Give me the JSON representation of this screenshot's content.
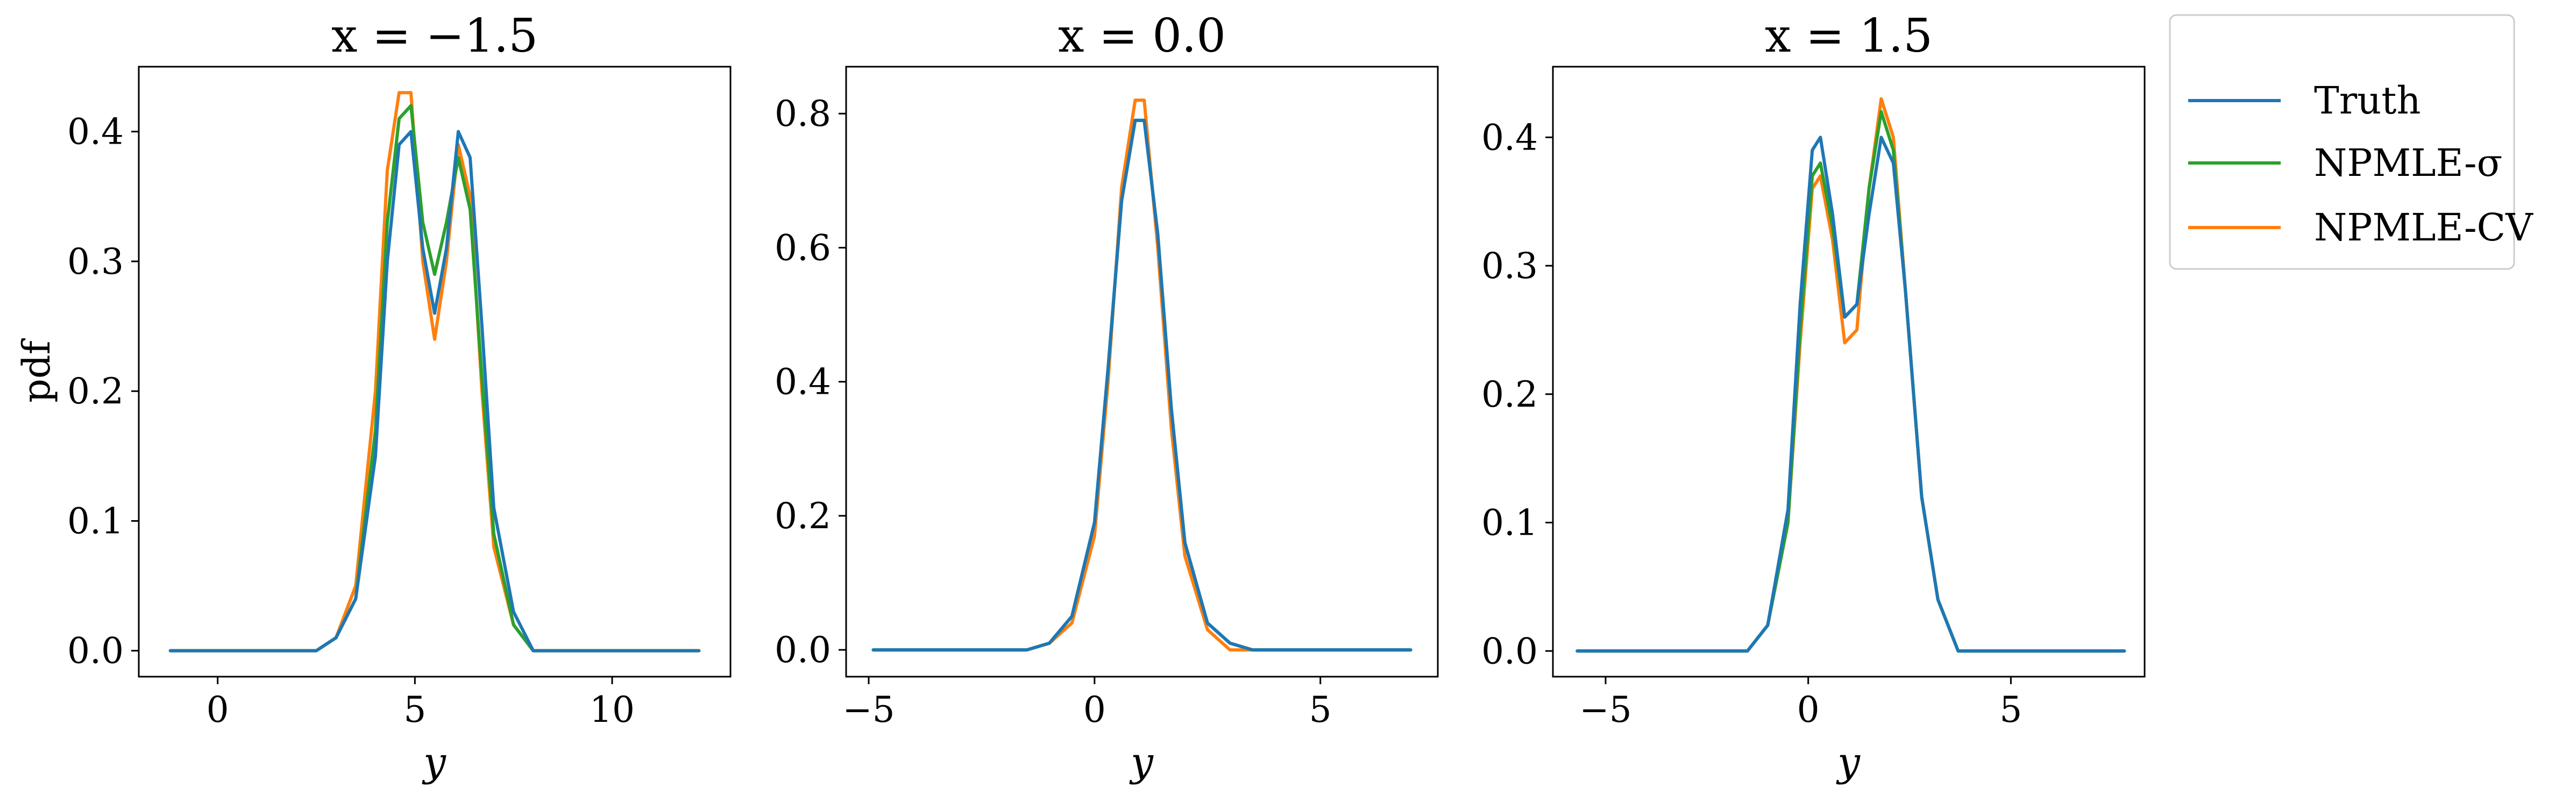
{
  "figure": {
    "colors": {
      "truth": "#1f77b4",
      "npmle_sigma": "#2ca02c",
      "npmle_cv": "#ff7f0e"
    }
  },
  "legend": {
    "placement": "outside-right-top",
    "entries": [
      {
        "label": "Truth",
        "color": "#1f77b4"
      },
      {
        "label": "NPMLE-σ",
        "color": "#2ca02c"
      },
      {
        "label": "NPMLE-CV",
        "color": "#ff7f0e"
      }
    ]
  },
  "chart_data": [
    {
      "type": "line",
      "title": "x = −1.5",
      "xlabel": "y",
      "ylabel": "pdf",
      "xlim": [
        -2.0,
        13.0
      ],
      "ylim": [
        -0.02,
        0.45
      ],
      "xticks": [
        0,
        5,
        10
      ],
      "yticks": [
        0.0,
        0.1,
        0.2,
        0.3,
        0.4
      ],
      "xtick_labels": [
        "0",
        "5",
        "10"
      ],
      "ytick_labels": [
        "0.0",
        "0.1",
        "0.2",
        "0.3",
        "0.4"
      ],
      "series": [
        {
          "name": "NPMLE-CV",
          "color": "#ff7f0e",
          "x": [
            -1.2,
            2.5,
            3.0,
            3.5,
            4.0,
            4.3,
            4.6,
            4.9,
            5.2,
            5.5,
            5.8,
            6.1,
            6.4,
            6.7,
            7.0,
            7.5,
            8.0,
            12.2
          ],
          "y": [
            0.0,
            0.0,
            0.01,
            0.05,
            0.2,
            0.37,
            0.43,
            0.43,
            0.3,
            0.24,
            0.3,
            0.39,
            0.35,
            0.2,
            0.08,
            0.02,
            0.0,
            0.0
          ]
        },
        {
          "name": "NPMLE-σ",
          "color": "#2ca02c",
          "x": [
            -1.2,
            2.5,
            3.0,
            3.5,
            4.0,
            4.3,
            4.6,
            4.9,
            5.2,
            5.5,
            5.8,
            6.1,
            6.4,
            6.7,
            7.0,
            7.5,
            8.0,
            12.2
          ],
          "y": [
            0.0,
            0.0,
            0.01,
            0.04,
            0.17,
            0.33,
            0.41,
            0.42,
            0.33,
            0.29,
            0.33,
            0.38,
            0.34,
            0.21,
            0.09,
            0.02,
            0.0,
            0.0
          ]
        },
        {
          "name": "Truth",
          "color": "#1f77b4",
          "x": [
            -1.2,
            2.5,
            3.0,
            3.5,
            4.0,
            4.3,
            4.6,
            4.9,
            5.2,
            5.5,
            5.8,
            6.1,
            6.4,
            6.7,
            7.0,
            7.5,
            8.0,
            12.2
          ],
          "y": [
            0.0,
            0.0,
            0.01,
            0.04,
            0.15,
            0.3,
            0.39,
            0.4,
            0.31,
            0.26,
            0.31,
            0.4,
            0.38,
            0.25,
            0.11,
            0.03,
            0.0,
            0.0
          ]
        }
      ]
    },
    {
      "type": "line",
      "title": "x = 0.0",
      "xlabel": "y",
      "ylabel": "",
      "xlim": [
        -5.5,
        7.6
      ],
      "ylim": [
        -0.04,
        0.87
      ],
      "xticks": [
        -5,
        0,
        5
      ],
      "yticks": [
        0.0,
        0.2,
        0.4,
        0.6,
        0.8
      ],
      "xtick_labels": [
        "−5",
        "0",
        "5"
      ],
      "ytick_labels": [
        "0.0",
        "0.2",
        "0.4",
        "0.6",
        "0.8"
      ],
      "series": [
        {
          "name": "NPMLE-CV",
          "color": "#ff7f0e",
          "x": [
            -4.9,
            -1.5,
            -1.0,
            -0.5,
            0.0,
            0.3,
            0.6,
            0.9,
            1.1,
            1.4,
            1.7,
            2.0,
            2.5,
            3.0,
            3.5,
            7.0
          ],
          "y": [
            0.0,
            0.0,
            0.01,
            0.04,
            0.17,
            0.4,
            0.69,
            0.82,
            0.82,
            0.6,
            0.33,
            0.14,
            0.03,
            0.0,
            0.0,
            0.0
          ]
        },
        {
          "name": "NPMLE-σ",
          "color": "#2ca02c",
          "x": [
            -4.9,
            -1.5,
            -1.0,
            -0.5,
            0.0,
            0.3,
            0.6,
            0.9,
            1.1,
            1.4,
            1.7,
            2.0,
            2.5,
            3.0,
            3.5,
            7.0
          ],
          "y": [
            0.0,
            0.0,
            0.01,
            0.05,
            0.19,
            0.42,
            0.67,
            0.79,
            0.79,
            0.62,
            0.36,
            0.16,
            0.04,
            0.01,
            0.0,
            0.0
          ]
        },
        {
          "name": "Truth",
          "color": "#1f77b4",
          "x": [
            -4.9,
            -1.5,
            -1.0,
            -0.5,
            0.0,
            0.3,
            0.6,
            0.9,
            1.1,
            1.4,
            1.7,
            2.0,
            2.5,
            3.0,
            3.5,
            7.0
          ],
          "y": [
            0.0,
            0.0,
            0.01,
            0.05,
            0.19,
            0.42,
            0.67,
            0.79,
            0.79,
            0.62,
            0.36,
            0.16,
            0.04,
            0.01,
            0.0,
            0.0
          ]
        }
      ]
    },
    {
      "type": "line",
      "title": "x = 1.5",
      "xlabel": "y",
      "ylabel": "",
      "xlim": [
        -6.3,
        8.3
      ],
      "ylim": [
        -0.02,
        0.455
      ],
      "xticks": [
        -5,
        0,
        5
      ],
      "yticks": [
        0.0,
        0.1,
        0.2,
        0.3,
        0.4
      ],
      "xtick_labels": [
        "−5",
        "0",
        "5"
      ],
      "ytick_labels": [
        "0.0",
        "0.1",
        "0.2",
        "0.3",
        "0.4"
      ],
      "series": [
        {
          "name": "NPMLE-CV",
          "color": "#ff7f0e",
          "x": [
            -5.7,
            -2.0,
            -1.5,
            -1.0,
            -0.5,
            -0.2,
            0.1,
            0.3,
            0.6,
            0.9,
            1.2,
            1.5,
            1.8,
            2.1,
            2.4,
            2.8,
            3.2,
            3.7,
            7.8
          ],
          "y": [
            0.0,
            0.0,
            0.0,
            0.02,
            0.1,
            0.24,
            0.36,
            0.37,
            0.32,
            0.24,
            0.25,
            0.36,
            0.43,
            0.4,
            0.28,
            0.12,
            0.04,
            0.0,
            0.0
          ]
        },
        {
          "name": "NPMLE-σ",
          "color": "#2ca02c",
          "x": [
            -5.7,
            -2.0,
            -1.5,
            -1.0,
            -0.5,
            -0.2,
            0.1,
            0.3,
            0.6,
            0.9,
            1.2,
            1.5,
            1.8,
            2.1,
            2.4,
            2.8,
            3.2,
            3.7,
            7.8
          ],
          "y": [
            0.0,
            0.0,
            0.0,
            0.02,
            0.1,
            0.25,
            0.37,
            0.38,
            0.33,
            0.26,
            0.27,
            0.36,
            0.42,
            0.39,
            0.28,
            0.12,
            0.04,
            0.0,
            0.0
          ]
        },
        {
          "name": "Truth",
          "color": "#1f77b4",
          "x": [
            -5.7,
            -2.0,
            -1.5,
            -1.0,
            -0.5,
            -0.2,
            0.1,
            0.3,
            0.6,
            0.9,
            1.2,
            1.5,
            1.8,
            2.1,
            2.4,
            2.8,
            3.2,
            3.7,
            7.8
          ],
          "y": [
            0.0,
            0.0,
            0.0,
            0.02,
            0.11,
            0.27,
            0.39,
            0.4,
            0.34,
            0.26,
            0.27,
            0.34,
            0.4,
            0.38,
            0.28,
            0.12,
            0.04,
            0.0,
            0.0
          ]
        }
      ]
    }
  ]
}
